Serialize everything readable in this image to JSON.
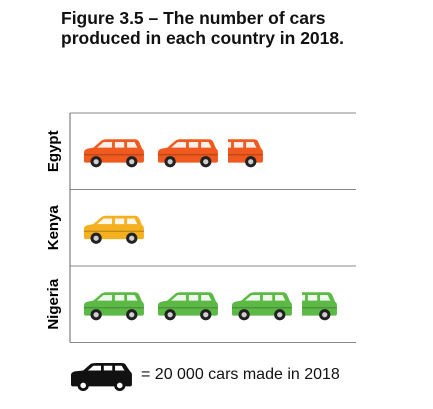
{
  "chart_data": {
    "type": "pictogram",
    "title": "Figure 3.5 – The number of cars produced in each country in 2018.",
    "categories": [
      "Egypt",
      "Kenya",
      "Nigeria"
    ],
    "values": [
      2.5,
      1,
      3.5
    ],
    "unit_value": 20000,
    "legend_text": "= 20 000 cars made in 2018",
    "colors": {
      "Egypt": "#f05a1e",
      "Kenya": "#f4b01e",
      "Nigeria": "#5cb946",
      "legend": "#111111",
      "rule": "#888888"
    }
  }
}
